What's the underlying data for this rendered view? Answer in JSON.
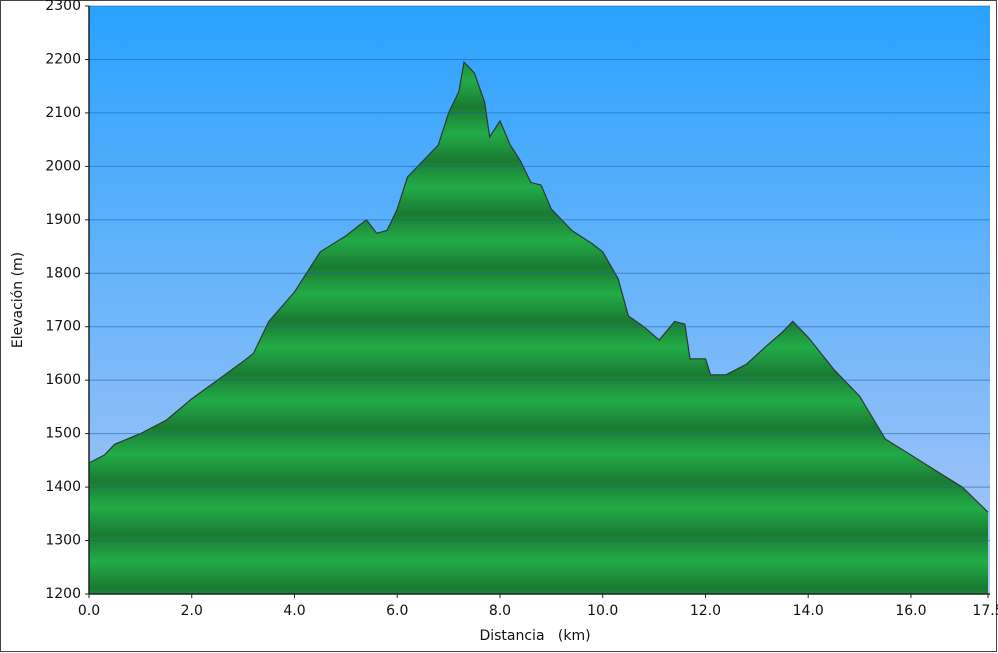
{
  "chart_data": {
    "type": "area",
    "xlabel": "Distancia   (km)",
    "ylabel": "Elevación (m)",
    "x": [
      0,
      0.3,
      0.5,
      1.0,
      1.5,
      2.0,
      2.5,
      3.0,
      3.2,
      3.5,
      4.0,
      4.5,
      5.0,
      5.2,
      5.4,
      5.6,
      5.8,
      6.0,
      6.2,
      6.5,
      6.8,
      7.0,
      7.2,
      7.3,
      7.5,
      7.7,
      7.8,
      8.0,
      8.2,
      8.4,
      8.6,
      8.8,
      9.0,
      9.4,
      9.8,
      10.0,
      10.3,
      10.5,
      10.8,
      11.1,
      11.4,
      11.6,
      11.7,
      12.0,
      12.1,
      12.4,
      12.8,
      13.2,
      13.5,
      13.7,
      14.0,
      14.5,
      15.0,
      15.5,
      16.0,
      16.5,
      17.0,
      17.5
    ],
    "values": [
      1445,
      1460,
      1480,
      1500,
      1525,
      1565,
      1600,
      1635,
      1650,
      1710,
      1765,
      1840,
      1870,
      1885,
      1900,
      1875,
      1880,
      1920,
      1980,
      2010,
      2040,
      2100,
      2140,
      2195,
      2175,
      2120,
      2055,
      2085,
      2040,
      2010,
      1970,
      1965,
      1920,
      1880,
      1855,
      1840,
      1790,
      1720,
      1700,
      1675,
      1710,
      1705,
      1640,
      1640,
      1610,
      1610,
      1630,
      1665,
      1690,
      1710,
      1680,
      1620,
      1570,
      1490,
      1460,
      1430,
      1400,
      1353
    ],
    "color": "#22a845",
    "line_color": "#2a3a30",
    "xlim": [
      0,
      17.5
    ],
    "xticks": [
      {
        "value": 0,
        "label": "0.0"
      },
      {
        "value": 2,
        "label": "2.0"
      },
      {
        "value": 4,
        "label": "4.0"
      },
      {
        "value": 6,
        "label": "6.0"
      },
      {
        "value": 8,
        "label": "8.0"
      },
      {
        "value": 10,
        "label": "10.0"
      },
      {
        "value": 12,
        "label": "12.0"
      },
      {
        "value": 14,
        "label": "14.0"
      },
      {
        "value": 16,
        "label": "16.0"
      },
      {
        "value": 17.5,
        "label": "17.5"
      }
    ],
    "ylim": [
      1200,
      2300
    ],
    "yticks": [
      1200,
      1300,
      1400,
      1500,
      1600,
      1700,
      1800,
      1900,
      2000,
      2100,
      2200,
      2300
    ],
    "grid": true
  }
}
